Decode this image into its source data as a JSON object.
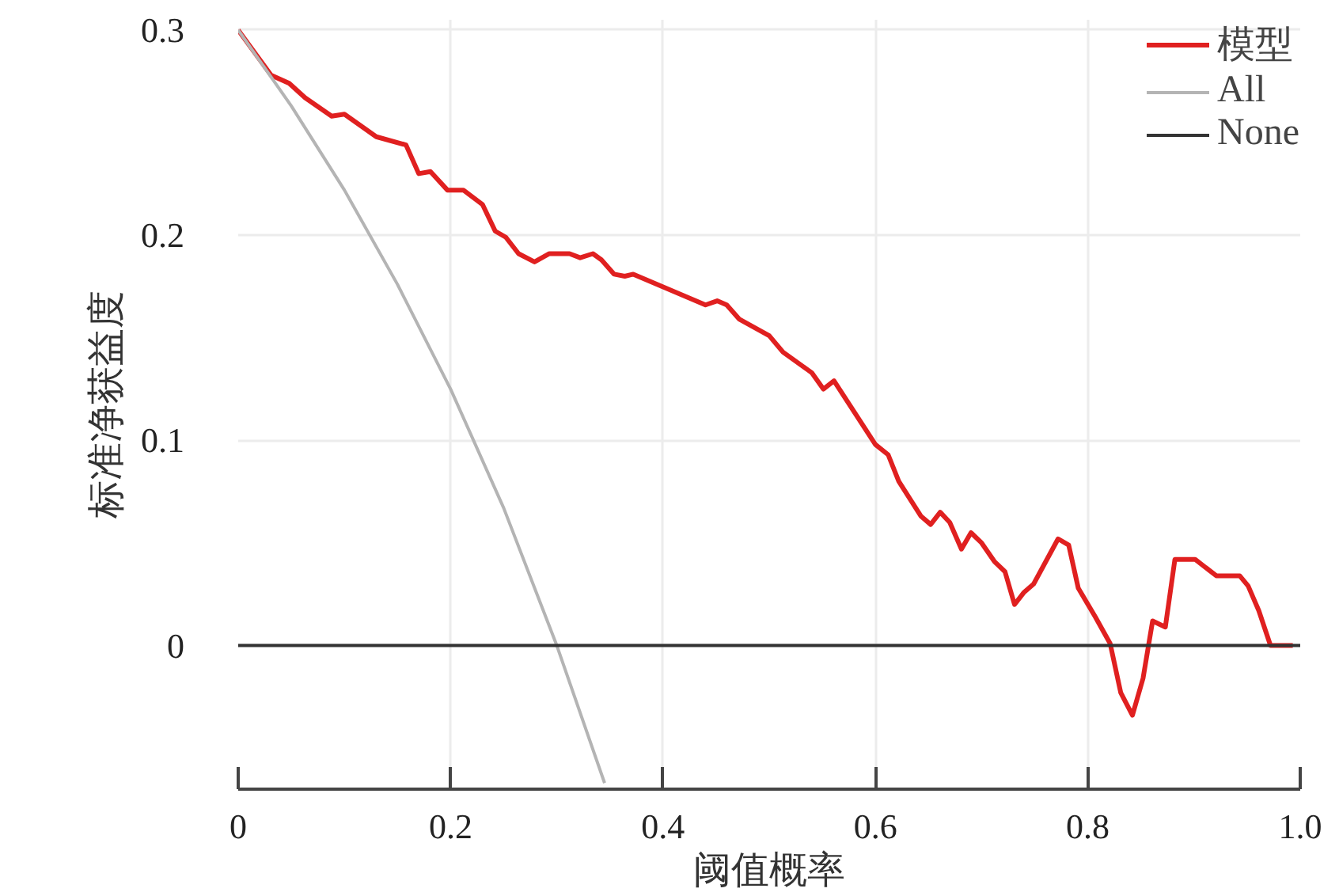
{
  "chart_data": {
    "type": "line",
    "xlabel": "阈值概率",
    "ylabel": "标准净获益度",
    "xlim": [
      0,
      1.0
    ],
    "ylim": [
      -0.07,
      0.305
    ],
    "xticks": [
      0,
      0.2,
      0.4,
      0.6,
      0.8,
      {
        "value": 1.0,
        "label": "1.0"
      }
    ],
    "yticks": [
      0,
      0.1,
      0.2,
      0.3
    ],
    "grid": true,
    "legend": "top right",
    "marker": "none",
    "line_style": "solid",
    "series": [
      {
        "name": "模型",
        "color": "#e02020",
        "x": [
          0,
          0.031,
          0.048,
          0.063,
          0.088,
          0.1,
          0.13,
          0.158,
          0.17,
          0.181,
          0.197,
          0.212,
          0.23,
          0.242,
          0.252,
          0.264,
          0.279,
          0.293,
          0.312,
          0.322,
          0.334,
          0.342,
          0.354,
          0.364,
          0.372,
          0.44,
          0.451,
          0.46,
          0.472,
          0.5,
          0.513,
          0.54,
          0.551,
          0.561,
          0.6,
          0.612,
          0.622,
          0.643,
          0.652,
          0.661,
          0.67,
          0.681,
          0.69,
          0.7,
          0.712,
          0.722,
          0.731,
          0.74,
          0.749,
          0.772,
          0.782,
          0.791,
          0.807,
          0.821,
          0.831,
          0.842,
          0.852,
          0.861,
          0.873,
          0.882,
          0.901,
          0.921,
          0.943,
          0.951,
          0.961,
          0.972,
          0.993
        ],
        "values": [
          0.3,
          0.278,
          0.274,
          0.267,
          0.258,
          0.259,
          0.248,
          0.244,
          0.23,
          0.231,
          0.222,
          0.222,
          0.215,
          0.202,
          0.199,
          0.191,
          0.187,
          0.191,
          0.191,
          0.189,
          0.191,
          0.188,
          0.181,
          0.18,
          0.181,
          0.166,
          0.168,
          0.166,
          0.159,
          0.151,
          0.143,
          0.133,
          0.125,
          0.129,
          0.098,
          0.093,
          0.08,
          0.063,
          0.059,
          0.065,
          0.06,
          0.047,
          0.055,
          0.05,
          0.041,
          0.036,
          0.02,
          0.026,
          0.03,
          0.052,
          0.049,
          0.028,
          0.014,
          0.001,
          -0.023,
          -0.034,
          -0.016,
          0.012,
          0.009,
          0.042,
          0.042,
          0.034,
          0.034,
          0.029,
          0.017,
          0,
          0
        ]
      },
      {
        "name": "All",
        "color": "#b4b4b4",
        "x": [
          0,
          0.05,
          0.1,
          0.15,
          0.2,
          0.25,
          0.3,
          0.345
        ],
        "values": [
          0.3,
          0.263,
          0.222,
          0.176,
          0.125,
          0.067,
          0,
          -0.067
        ]
      },
      {
        "name": "None",
        "color": "#333333",
        "x": [
          0,
          1.0
        ],
        "values": [
          0,
          0
        ]
      }
    ]
  }
}
